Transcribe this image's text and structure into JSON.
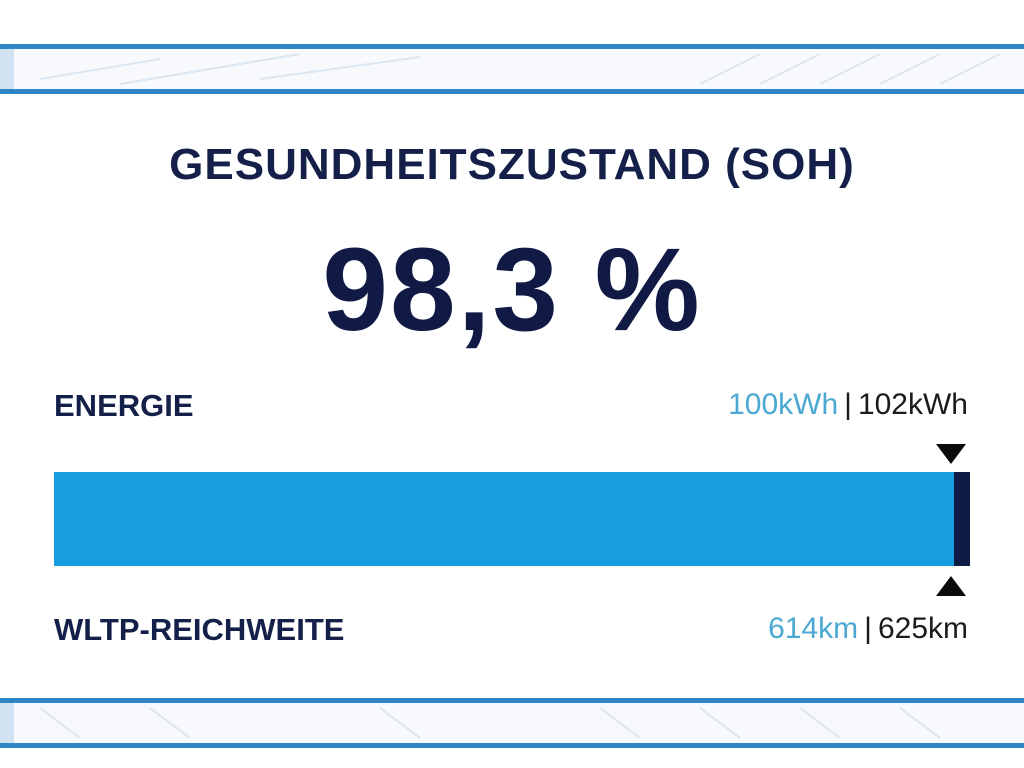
{
  "header": {
    "title": "GESUNDHEITSZUSTAND (SOH)",
    "value": "98,3 %"
  },
  "energy": {
    "label": "ENERGIE",
    "current": "100kWh",
    "separator": "|",
    "original": "102kWh"
  },
  "bar": {
    "fill_fraction": 0.983,
    "fill_color": "#169ee0",
    "track_color": "#0f1a45"
  },
  "range": {
    "label": "WLTP-REICHWEITE",
    "current": "614km",
    "separator": "|",
    "original": "625km"
  },
  "colors": {
    "title": "#14204a",
    "accent_light": "#4aa8d2",
    "band_border": "#2f86c6"
  },
  "icons": {
    "top_marker": "triangle-down-icon",
    "bottom_marker": "triangle-up-icon"
  }
}
